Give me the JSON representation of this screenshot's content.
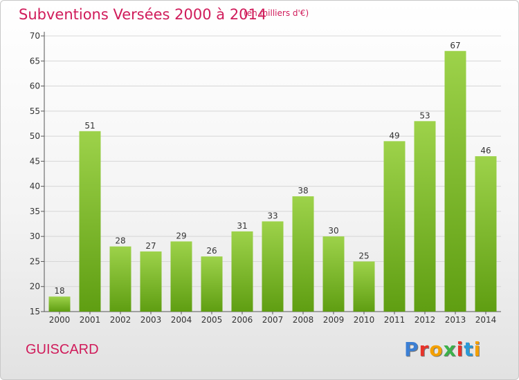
{
  "header": {
    "title": "Subventions Versées 2000 à 2014",
    "subtitle": "(en milliers d'€)"
  },
  "footer": {
    "commune": "GUISCARD",
    "logo": "Proxiti"
  },
  "colors": {
    "accent": "#d01b5a",
    "bar_top": "#9dd24a",
    "bar_bottom": "#5f9e12",
    "logo_letters": [
      "#3b7fd4",
      "#e8332a",
      "#f4a000",
      "#3cb14a",
      "#e8332a",
      "#2a9ad8",
      "#f4a000"
    ]
  },
  "chart_data": {
    "type": "bar",
    "title": "Subventions Versées 2000 à 2014",
    "subtitle": "(en milliers d'€)",
    "xlabel": "",
    "ylabel": "",
    "categories": [
      "2000",
      "2001",
      "2002",
      "2003",
      "2004",
      "2005",
      "2006",
      "2007",
      "2008",
      "2009",
      "2010",
      "2011",
      "2012",
      "2013",
      "2014"
    ],
    "values": [
      18,
      51,
      28,
      27,
      29,
      26,
      31,
      33,
      38,
      30,
      25,
      49,
      53,
      67,
      46
    ],
    "ylim": [
      15,
      70
    ],
    "yticks": [
      15,
      20,
      25,
      30,
      35,
      40,
      45,
      50,
      55,
      60,
      65,
      70
    ],
    "grid": true
  }
}
